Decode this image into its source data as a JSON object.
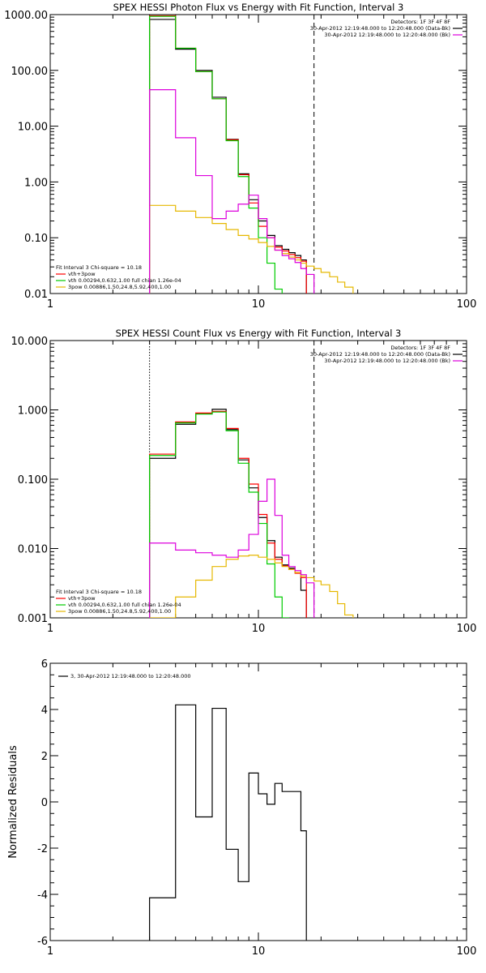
{
  "chart_data": [
    {
      "type": "line",
      "title": "SPEX HESSI Photon Flux vs Energy with Fit Function, Interval 3",
      "xscale": "log",
      "yscale": "log",
      "xlim": [
        1,
        100
      ],
      "ylim": [
        0.01,
        1000
      ],
      "xticks": [
        {
          "v": 1,
          "label": "1"
        },
        {
          "v": 10,
          "label": "10"
        },
        {
          "v": 100,
          "label": "100"
        }
      ],
      "yticks": [
        {
          "v": 0.01,
          "label": "0.01"
        },
        {
          "v": 0.1,
          "label": "0.10"
        },
        {
          "v": 1,
          "label": "1.00"
        },
        {
          "v": 10,
          "label": "10.00"
        },
        {
          "v": 100,
          "label": "100.00"
        },
        {
          "v": 1000,
          "label": "1000.00"
        }
      ],
      "vlines": [
        {
          "x": 3.0,
          "style": "dotted"
        },
        {
          "x": 18.5,
          "style": "dashed"
        }
      ],
      "legend_tr": [
        {
          "text": "Detectors: 1F 3F 4F 8F",
          "color": null
        },
        {
          "text": "30-Apr-2012 12:19:48.000 to 12:20:48.000 (Data-Bk)",
          "color": "#000000"
        },
        {
          "text": "30-Apr-2012 12:19:48.000 to 12:20:48.000 (Bk)",
          "color": "#dd00dd"
        }
      ],
      "legend_bl": [
        {
          "text": "Fit Interval 3   Chi-square = 10.18",
          "color": null
        },
        {
          "text": "vth+3pow",
          "color": "#ff0000"
        },
        {
          "text": "vth 0.00294,0.632,1.00   full chian 1.26e-04",
          "color": "#00cc00"
        },
        {
          "text": "3pow 0.00886,1.50,24.8,5.92,400,1.00",
          "color": "#e6b800"
        }
      ],
      "edges": [
        3.0,
        4.0,
        5.0,
        6.0,
        7.0,
        8.0,
        9.0,
        10.0,
        11.0,
        12.0,
        13.0,
        14.0,
        15.0,
        16.0,
        17.0,
        18.5,
        20.0,
        22.0,
        24.0,
        26.0,
        28.5
      ],
      "series": [
        {
          "name": "Data-Bk",
          "color": "#000000",
          "values": [
            820,
            240,
            100,
            33,
            5.8,
            1.4,
            0.48,
            0.2,
            0.11,
            0.072,
            0.062,
            0.054,
            0.048,
            0.04
          ]
        },
        {
          "name": "vth+3pow",
          "color": "#ff0000",
          "values": [
            950,
            250,
            95,
            31,
            5.7,
            1.35,
            0.42,
            0.16,
            0.1,
            0.068,
            0.058,
            0.05,
            0.044,
            0.038
          ]
        },
        {
          "name": "vth",
          "color": "#00cc00",
          "values": [
            930,
            250,
            95,
            31,
            5.5,
            1.25,
            0.34,
            0.1,
            0.035,
            0.012
          ]
        },
        {
          "name": "3pow",
          "color": "#e6b800",
          "values": [
            0.38,
            0.3,
            0.23,
            0.18,
            0.14,
            0.11,
            0.095,
            0.082,
            0.07,
            0.06,
            0.052,
            0.045,
            0.04,
            0.035,
            0.031,
            0.028,
            0.024,
            0.02,
            0.016,
            0.013
          ]
        },
        {
          "name": "Bk",
          "color": "#dd00dd",
          "values": [
            45,
            6.2,
            1.3,
            0.22,
            0.3,
            0.4,
            0.58,
            0.22,
            0.1,
            0.06,
            0.048,
            0.042,
            0.036,
            0.028,
            0.022
          ]
        }
      ]
    },
    {
      "type": "line",
      "title": "SPEX HESSI Count Flux vs Energy with Fit Function, Interval 3",
      "xscale": "log",
      "yscale": "log",
      "xlim": [
        1,
        100
      ],
      "ylim": [
        0.001,
        10
      ],
      "xticks": [
        {
          "v": 1,
          "label": "1"
        },
        {
          "v": 10,
          "label": "10"
        },
        {
          "v": 100,
          "label": "100"
        }
      ],
      "yticks": [
        {
          "v": 0.001,
          "label": "0.001"
        },
        {
          "v": 0.01,
          "label": "0.010"
        },
        {
          "v": 0.1,
          "label": "0.100"
        },
        {
          "v": 1,
          "label": "1.000"
        },
        {
          "v": 10,
          "label": "10.000"
        }
      ],
      "vlines": [
        {
          "x": 3.0,
          "style": "dotted"
        },
        {
          "x": 18.5,
          "style": "dashed"
        }
      ],
      "legend_tr": [
        {
          "text": "Detectors: 1F 3F 4F 8F",
          "color": null
        },
        {
          "text": "30-Apr-2012 12:19:48.000 to 12:20:48.000 (Data-Bk)",
          "color": "#000000"
        },
        {
          "text": "30-Apr-2012 12:19:48.000 to 12:20:48.000 (Bk)",
          "color": "#dd00dd"
        }
      ],
      "legend_bl": [
        {
          "text": "Fit Interval 3   Chi-square = 10.18",
          "color": null
        },
        {
          "text": "vth+3pow",
          "color": "#ff0000"
        },
        {
          "text": "vth 0.00294,0.632,1.00   full chian 1.26e-04",
          "color": "#00cc00"
        },
        {
          "text": "3pow 0.00886,1.50,24.8,5.92,400,1.00",
          "color": "#e6b800"
        }
      ],
      "edges": [
        3.0,
        4.0,
        5.0,
        6.0,
        7.0,
        8.0,
        9.0,
        10.0,
        11.0,
        12.0,
        13.0,
        14.0,
        15.0,
        16.0,
        17.0,
        18.5,
        20.0,
        22.0,
        24.0,
        26.0,
        28.5
      ],
      "series": [
        {
          "name": "Data-Bk",
          "color": "#000000",
          "values": [
            0.2,
            0.62,
            0.88,
            1.02,
            0.52,
            0.19,
            0.075,
            0.028,
            0.013,
            0.0075,
            0.0058,
            0.0052,
            0.0045,
            0.0025
          ]
        },
        {
          "name": "vth+3pow",
          "color": "#ff0000",
          "values": [
            0.23,
            0.67,
            0.9,
            0.95,
            0.54,
            0.2,
            0.085,
            0.031,
            0.012,
            0.007,
            0.0056,
            0.005,
            0.0044,
            0.0038
          ]
        },
        {
          "name": "vth",
          "color": "#00cc00",
          "values": [
            0.22,
            0.65,
            0.87,
            0.93,
            0.5,
            0.17,
            0.065,
            0.023,
            0.006,
            0.002,
            0.001
          ]
        },
        {
          "name": "3pow",
          "color": "#e6b800",
          "values": [
            0.001,
            0.002,
            0.0035,
            0.0055,
            0.007,
            0.0078,
            0.008,
            0.0075,
            0.007,
            0.0062,
            0.0055,
            0.005,
            0.0045,
            0.004,
            0.0038,
            0.0034,
            0.003,
            0.0024,
            0.0016,
            0.0011
          ]
        },
        {
          "name": "Bk",
          "color": "#dd00dd",
          "values": [
            0.012,
            0.0095,
            0.0087,
            0.008,
            0.0075,
            0.0095,
            0.016,
            0.048,
            0.1,
            0.03,
            0.008,
            0.0055,
            0.0048,
            0.0042,
            0.0032
          ]
        }
      ]
    },
    {
      "type": "line",
      "title": "",
      "ylabel": "Normalized Residuals",
      "xscale": "log",
      "yscale": "linear",
      "xlim": [
        1,
        100
      ],
      "ylim": [
        -6,
        6
      ],
      "xticks": [
        {
          "v": 1,
          "label": "1"
        },
        {
          "v": 10,
          "label": "10"
        },
        {
          "v": 100,
          "label": "100"
        }
      ],
      "yticks": [
        {
          "v": -6,
          "label": "-6"
        },
        {
          "v": -4,
          "label": "-4"
        },
        {
          "v": -2,
          "label": "-2"
        },
        {
          "v": 0,
          "label": "0"
        },
        {
          "v": 2,
          "label": "2"
        },
        {
          "v": 4,
          "label": "4"
        },
        {
          "v": 6,
          "label": "6"
        }
      ],
      "legend_tl": [
        {
          "text": "3, 30-Apr-2012 12:19:48.000 to 12:20:48.000",
          "color": "#000000"
        }
      ],
      "edges": [
        3.0,
        4.0,
        5.0,
        6.0,
        7.0,
        8.0,
        9.0,
        10.0,
        11.0,
        12.0,
        13.0,
        14.0,
        15.0,
        16.0,
        17.0,
        18.5
      ],
      "series": [
        {
          "name": "residuals",
          "color": "#000000",
          "values": [
            -4.15,
            4.2,
            -0.65,
            4.05,
            -2.05,
            -3.45,
            1.25,
            0.35,
            -0.1,
            0.8,
            0.45,
            0.45,
            0.45,
            -1.25
          ]
        }
      ]
    }
  ]
}
